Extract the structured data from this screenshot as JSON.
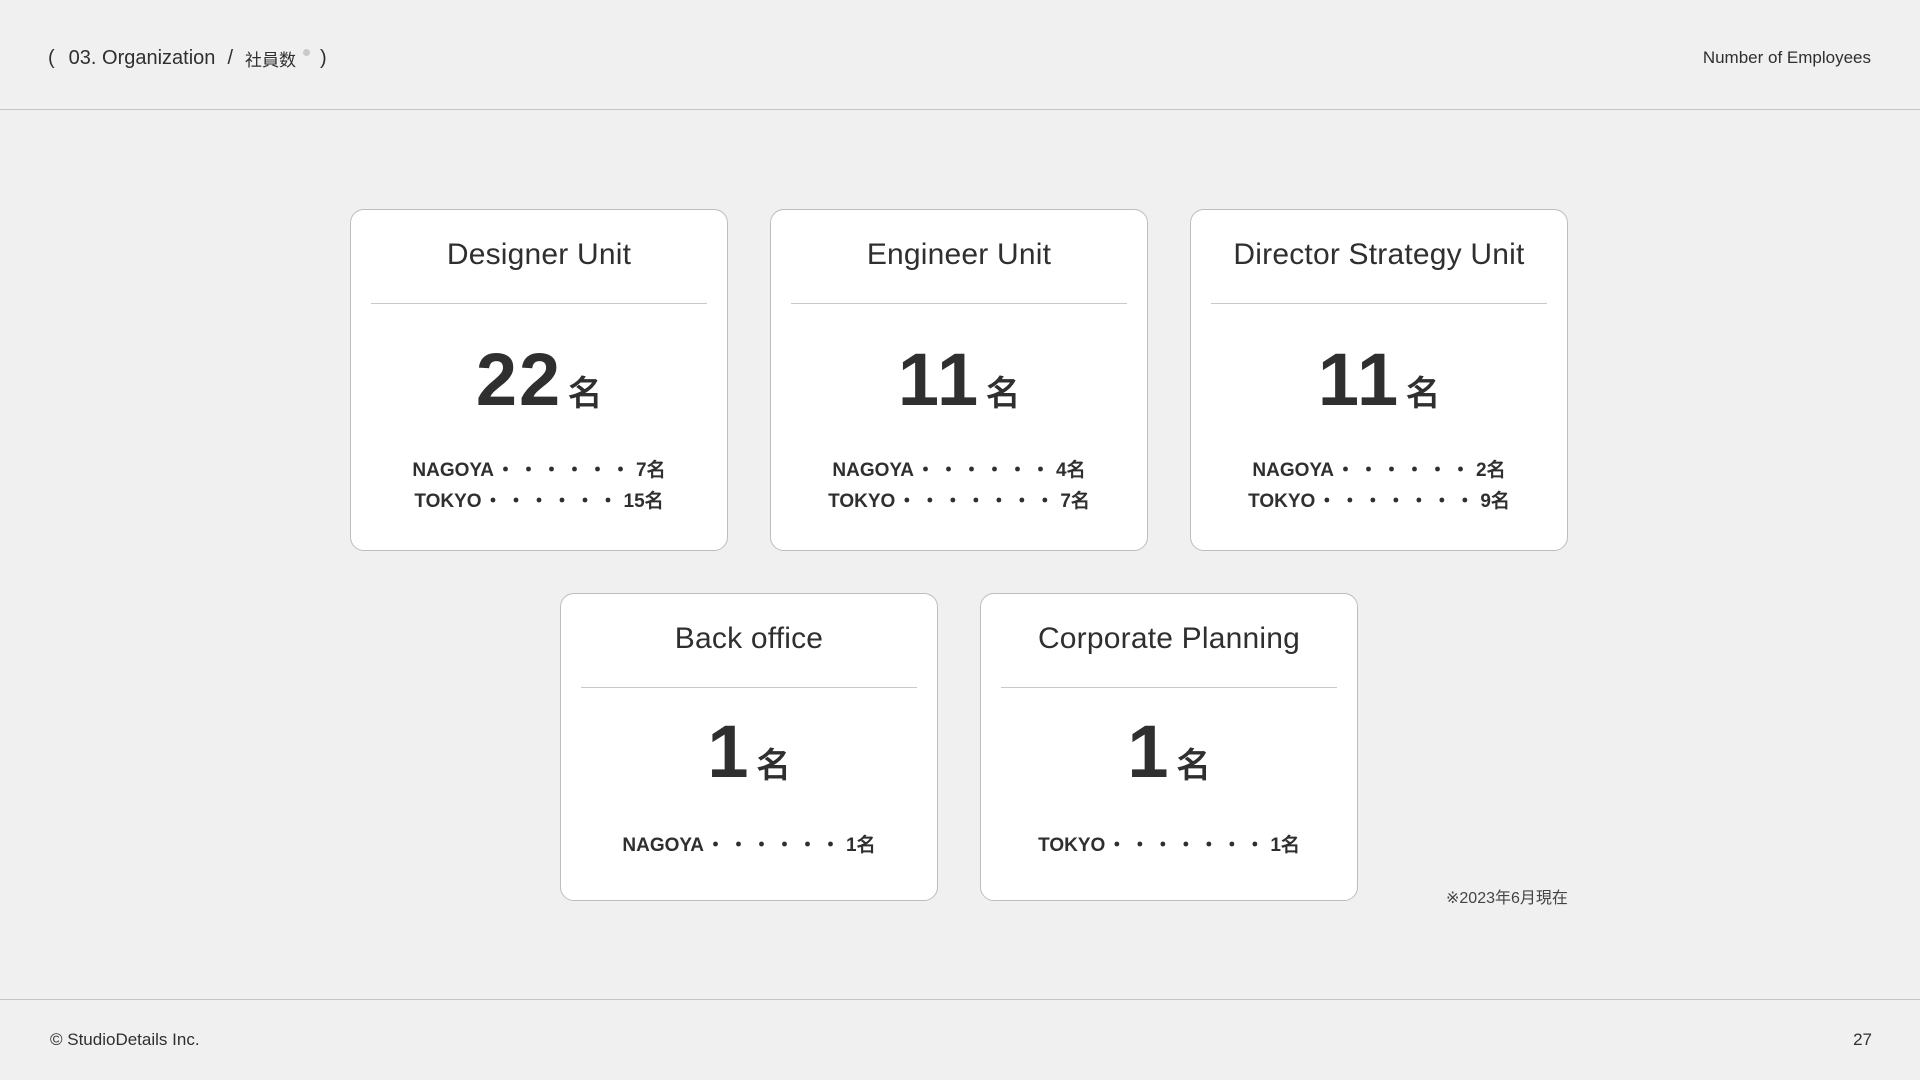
{
  "header": {
    "open_paren": "(",
    "section": "03. Organization",
    "separator": "/",
    "subsection": "社員数",
    "close_paren": ")",
    "right_label": "Number of Employees"
  },
  "cards": [
    {
      "title": "Designer Unit",
      "count": "22",
      "unit": "名",
      "rows": [
        {
          "label": "NAGOYA",
          "dots": "・・・・・・",
          "value": "7名"
        },
        {
          "label": "TOKYO",
          "dots": "・・・・・・",
          "value": "15名"
        }
      ]
    },
    {
      "title": "Engineer Unit",
      "count": "11",
      "unit": "名",
      "rows": [
        {
          "label": "NAGOYA",
          "dots": "・・・・・・",
          "value": "4名"
        },
        {
          "label": "TOKYO",
          "dots": "・・・・・・・",
          "value": "7名"
        }
      ]
    },
    {
      "title": "Director Strategy Unit",
      "count": "11",
      "unit": "名",
      "rows": [
        {
          "label": "NAGOYA",
          "dots": "・・・・・・",
          "value": "2名"
        },
        {
          "label": "TOKYO",
          "dots": "・・・・・・・",
          "value": "9名"
        }
      ]
    },
    {
      "title": "Back office",
      "count": "1",
      "unit": "名",
      "rows": [
        {
          "label": "NAGOYA",
          "dots": "・・・・・・",
          "value": "1名"
        }
      ]
    },
    {
      "title": "Corporate Planning",
      "count": "1",
      "unit": "名",
      "rows": [
        {
          "label": "TOKYO",
          "dots": "・・・・・・・",
          "value": "1名"
        }
      ]
    }
  ],
  "note": "※2023年6月現在",
  "footer": {
    "copyright": "© StudioDetails Inc.",
    "page_number": "27"
  }
}
